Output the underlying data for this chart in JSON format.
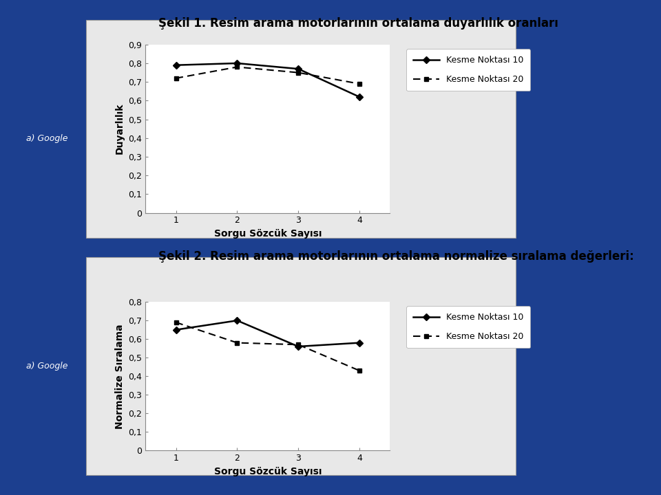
{
  "background_color": "#1c3f8f",
  "panel_color": "#e8e8e8",
  "chart_bg": "#ffffff",
  "fig_title1": "Şekil 1. Resim arama motorlarının ortalama duyarlılık oranları",
  "fig_title2": "Şekil 2. Resim arama motorlarının ortalama normalize sıralama değerleri:",
  "side_label": "a) Google",
  "xlabel": "Sorgu Sözcük Sayısı",
  "ylabel1": "Duyarlılık",
  "ylabel2": "Normalize Sıralama",
  "x": [
    1,
    2,
    3,
    4
  ],
  "chart1_series1": [
    0.79,
    0.8,
    0.77,
    0.62
  ],
  "chart1_series2": [
    0.72,
    0.78,
    0.75,
    0.69
  ],
  "chart2_series1": [
    0.65,
    0.7,
    0.56,
    0.58
  ],
  "chart2_series2": [
    0.69,
    0.58,
    0.57,
    0.43
  ],
  "legend_label1": "Kesme Noktası 10",
  "legend_label2": "Kesme Noktası 20",
  "yticks1": [
    0,
    0.1,
    0.2,
    0.3,
    0.4,
    0.5,
    0.6,
    0.7,
    0.8,
    0.9
  ],
  "yticks2": [
    0,
    0.1,
    0.2,
    0.3,
    0.4,
    0.5,
    0.6,
    0.7,
    0.8
  ],
  "title_fontsize": 12,
  "axis_label_fontsize": 10,
  "tick_fontsize": 9,
  "legend_fontsize": 9,
  "side_label_fontsize": 9,
  "line_color": "#000000",
  "text_color_white": "#ffffff",
  "text_color_dark": "#000000"
}
